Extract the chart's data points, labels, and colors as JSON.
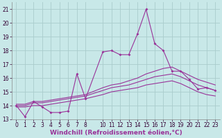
{
  "background_color": "#c8e8e8",
  "grid_color": "#aacccc",
  "line_color": "#993399",
  "xlabel": "Windchill (Refroidissement éolien,°C)",
  "xlabel_fontsize": 6.5,
  "tick_fontsize": 5.5,
  "ylim": [
    13,
    21.5
  ],
  "yticks": [
    13,
    14,
    15,
    16,
    17,
    18,
    19,
    20,
    21
  ],
  "xlim": [
    -0.5,
    23.5
  ],
  "xticks": [
    0,
    1,
    2,
    3,
    4,
    5,
    6,
    7,
    8,
    10,
    11,
    12,
    13,
    14,
    15,
    16,
    17,
    18,
    19,
    20,
    21,
    22,
    23
  ],
  "series_main": {
    "x": [
      0,
      1,
      2,
      3,
      4,
      5,
      6,
      7,
      8,
      10,
      11,
      12,
      13,
      14,
      15,
      16,
      17,
      18,
      19,
      20,
      21,
      22,
      23
    ],
    "y": [
      14.0,
      13.2,
      14.3,
      13.9,
      13.5,
      13.5,
      13.6,
      16.3,
      14.5,
      17.9,
      18.0,
      17.7,
      17.7,
      19.2,
      21.0,
      18.5,
      18.0,
      16.5,
      16.5,
      15.9,
      15.2,
      15.3,
      15.1
    ]
  },
  "series_smooth": [
    {
      "x": [
        0,
        1,
        2,
        3,
        4,
        5,
        6,
        7,
        8,
        10,
        11,
        12,
        13,
        14,
        15,
        16,
        17,
        18,
        19,
        20,
        21,
        22,
        23
      ],
      "y": [
        14.1,
        14.1,
        14.3,
        14.3,
        14.4,
        14.5,
        14.6,
        14.7,
        14.8,
        15.3,
        15.5,
        15.6,
        15.8,
        16.0,
        16.3,
        16.5,
        16.7,
        16.8,
        16.5,
        16.2,
        15.9,
        15.7,
        15.5
      ]
    },
    {
      "x": [
        0,
        1,
        2,
        3,
        4,
        5,
        6,
        7,
        8,
        10,
        11,
        12,
        13,
        14,
        15,
        16,
        17,
        18,
        19,
        20,
        21,
        22,
        23
      ],
      "y": [
        14.0,
        14.0,
        14.2,
        14.2,
        14.3,
        14.4,
        14.5,
        14.6,
        14.7,
        15.1,
        15.3,
        15.4,
        15.5,
        15.7,
        15.9,
        16.1,
        16.2,
        16.3,
        16.1,
        15.8,
        15.5,
        15.3,
        15.1
      ]
    },
    {
      "x": [
        0,
        1,
        2,
        3,
        4,
        5,
        6,
        7,
        8,
        10,
        11,
        12,
        13,
        14,
        15,
        16,
        17,
        18,
        19,
        20,
        21,
        22,
        23
      ],
      "y": [
        13.9,
        13.9,
        14.0,
        14.0,
        14.1,
        14.2,
        14.3,
        14.4,
        14.5,
        14.8,
        15.0,
        15.1,
        15.2,
        15.3,
        15.5,
        15.6,
        15.7,
        15.8,
        15.6,
        15.3,
        15.0,
        14.8,
        14.7
      ]
    }
  ]
}
